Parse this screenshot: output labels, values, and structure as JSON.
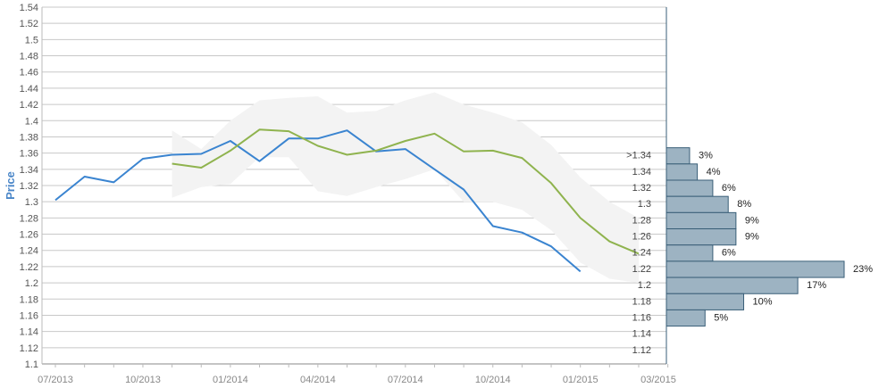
{
  "chart_data": {
    "type": "line",
    "ylabel": "Price",
    "ylim": [
      1.1,
      1.54
    ],
    "yticks": [
      "1.1",
      "1.12",
      "1.14",
      "1.16",
      "1.18",
      "1.2",
      "1.22",
      "1.24",
      "1.26",
      "1.28",
      "1.3",
      "1.32",
      "1.34",
      "1.36",
      "1.38",
      "1.4",
      "1.42",
      "1.44",
      "1.46",
      "1.48",
      "1.5",
      "1.52",
      "1.54"
    ],
    "xticks": [
      "07/2013",
      "10/2013",
      "01/2014",
      "04/2014",
      "07/2014",
      "10/2014",
      "01/2015",
      "03/2015"
    ],
    "grid": true,
    "series": [
      {
        "color": "#3a84d0",
        "x": [
          "2013-07",
          "2013-08",
          "2013-09",
          "2013-10",
          "2013-11",
          "2013-12",
          "2014-01",
          "2014-02",
          "2014-03",
          "2014-04",
          "2014-05",
          "2014-06",
          "2014-07",
          "2014-08",
          "2014-09",
          "2014-10",
          "2014-11",
          "2014-12",
          "2015-01"
        ],
        "values": [
          1.302,
          1.331,
          1.324,
          1.353,
          1.358,
          1.359,
          1.375,
          1.35,
          1.378,
          1.378,
          1.388,
          1.362,
          1.365,
          1.34,
          1.315,
          1.27,
          1.262,
          1.245,
          1.214
        ]
      },
      {
        "color": "#8fb34e",
        "x": [
          "2013-11",
          "2013-12",
          "2014-01",
          "2014-02",
          "2014-03",
          "2014-04",
          "2014-05",
          "2014-06",
          "2014-07",
          "2014-08",
          "2014-09",
          "2014-10",
          "2014-11",
          "2014-12",
          "2015-01",
          "2015-02",
          "2015-03"
        ],
        "values": [
          1.347,
          1.342,
          1.363,
          1.389,
          1.387,
          1.369,
          1.358,
          1.363,
          1.375,
          1.384,
          1.362,
          1.363,
          1.354,
          1.323,
          1.28,
          1.251,
          1.236
        ]
      }
    ],
    "band": {
      "color": "#f3f3f3",
      "x": [
        "2013-11",
        "2013-12",
        "2014-01",
        "2014-02",
        "2014-03",
        "2014-04",
        "2014-05",
        "2014-06",
        "2014-07",
        "2014-08",
        "2014-09",
        "2014-10",
        "2014-11",
        "2014-12",
        "2015-01",
        "2015-02",
        "2015-03"
      ],
      "upper": [
        1.388,
        1.365,
        1.4,
        1.425,
        1.428,
        1.43,
        1.41,
        1.412,
        1.425,
        1.435,
        1.42,
        1.41,
        1.398,
        1.37,
        1.33,
        1.3,
        1.28
      ],
      "lower": [
        1.305,
        1.318,
        1.322,
        1.355,
        1.355,
        1.313,
        1.307,
        1.318,
        1.328,
        1.34,
        1.3,
        1.3,
        1.29,
        1.265,
        1.225,
        1.205,
        1.2
      ]
    },
    "distribution": {
      "color": "#9db3c2",
      "border": "#3a5f78",
      "labels": [
        ">1.34",
        "1.34",
        "1.32",
        "1.3",
        "1.28",
        "1.26",
        "1.24",
        "1.22",
        "1.2",
        "1.18",
        "1.16",
        "1.14",
        "1.12"
      ],
      "percent_labels": [
        "3%",
        "4%",
        "6%",
        "8%",
        "9%",
        "9%",
        "6%",
        "23%",
        "17%",
        "10%",
        "5%",
        "",
        ""
      ],
      "values": [
        3,
        4,
        6,
        8,
        9,
        9,
        6,
        23,
        17,
        10,
        5,
        0,
        0
      ]
    }
  }
}
